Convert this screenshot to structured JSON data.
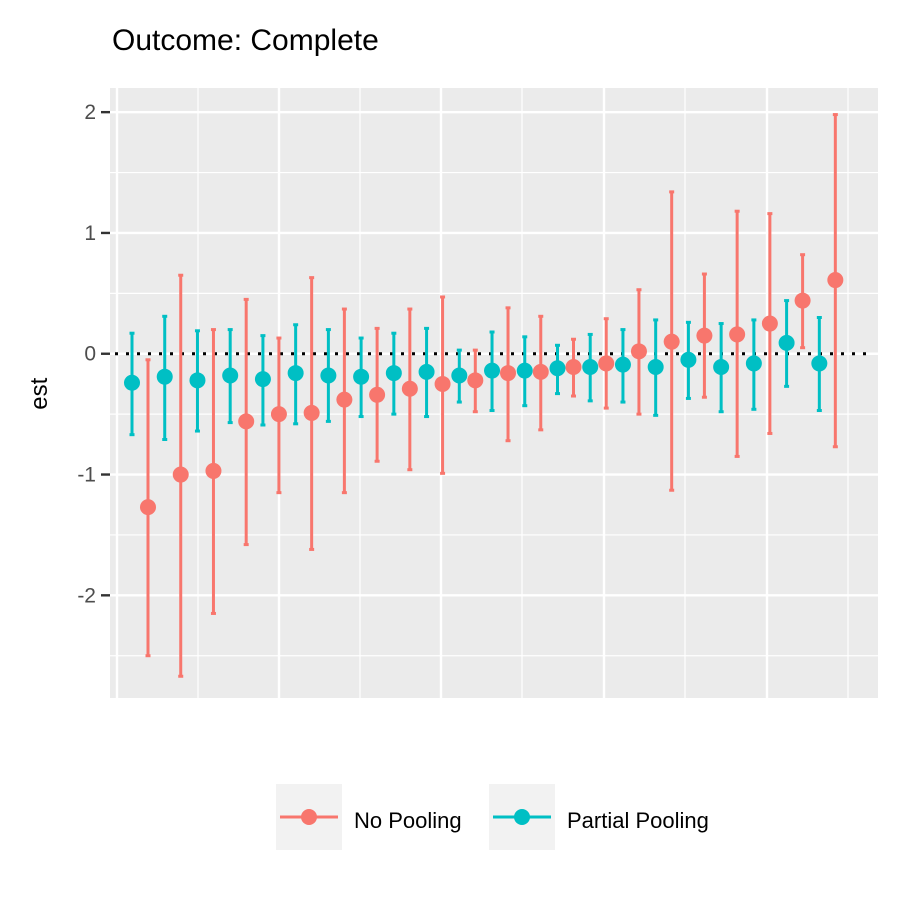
{
  "chart_data": {
    "type": "scatter",
    "title": "Outcome: Complete",
    "xlabel": "",
    "ylabel": "est",
    "ylim": [
      -2.85,
      2.2
    ],
    "yticks": [
      "-2",
      "-1",
      "0",
      "1",
      "2"
    ],
    "reference_line": {
      "y": 0,
      "style": "dotted"
    },
    "grid": true,
    "legend_position": "bottom",
    "series": [
      {
        "name": "No Pooling",
        "color": "#F8766D",
        "points": [
          {
            "est": -1.27,
            "lo": -2.5,
            "hi": -0.05
          },
          {
            "est": -1.0,
            "lo": -2.67,
            "hi": 0.65
          },
          {
            "est": -0.97,
            "lo": -2.15,
            "hi": 0.2
          },
          {
            "est": -0.56,
            "lo": -1.58,
            "hi": 0.45
          },
          {
            "est": -0.5,
            "lo": -1.15,
            "hi": 0.13
          },
          {
            "est": -0.49,
            "lo": -1.62,
            "hi": 0.63
          },
          {
            "est": -0.38,
            "lo": -1.15,
            "hi": 0.37
          },
          {
            "est": -0.34,
            "lo": -0.89,
            "hi": 0.21
          },
          {
            "est": -0.29,
            "lo": -0.96,
            "hi": 0.37
          },
          {
            "est": -0.25,
            "lo": -0.99,
            "hi": 0.47
          },
          {
            "est": -0.22,
            "lo": -0.48,
            "hi": 0.03
          },
          {
            "est": -0.16,
            "lo": -0.72,
            "hi": 0.38
          },
          {
            "est": -0.15,
            "lo": -0.63,
            "hi": 0.31
          },
          {
            "est": -0.11,
            "lo": -0.35,
            "hi": 0.12
          },
          {
            "est": -0.08,
            "lo": -0.45,
            "hi": 0.29
          },
          {
            "est": 0.02,
            "lo": -0.5,
            "hi": 0.53
          },
          {
            "est": 0.1,
            "lo": -1.13,
            "hi": 1.34
          },
          {
            "est": 0.15,
            "lo": -0.36,
            "hi": 0.66
          },
          {
            "est": 0.16,
            "lo": -0.85,
            "hi": 1.18
          },
          {
            "est": 0.25,
            "lo": -0.66,
            "hi": 1.16
          },
          {
            "est": 0.44,
            "lo": 0.05,
            "hi": 0.82
          },
          {
            "est": 0.61,
            "lo": -0.77,
            "hi": 1.98
          }
        ]
      },
      {
        "name": "Partial Pooling",
        "color": "#00BFC4",
        "points": [
          {
            "est": -0.24,
            "lo": -0.67,
            "hi": 0.17
          },
          {
            "est": -0.19,
            "lo": -0.71,
            "hi": 0.31
          },
          {
            "est": -0.22,
            "lo": -0.64,
            "hi": 0.19
          },
          {
            "est": -0.18,
            "lo": -0.57,
            "hi": 0.2
          },
          {
            "est": -0.21,
            "lo": -0.59,
            "hi": 0.15
          },
          {
            "est": -0.16,
            "lo": -0.58,
            "hi": 0.24
          },
          {
            "est": -0.18,
            "lo": -0.56,
            "hi": 0.2
          },
          {
            "est": -0.19,
            "lo": -0.52,
            "hi": 0.13
          },
          {
            "est": -0.16,
            "lo": -0.5,
            "hi": 0.17
          },
          {
            "est": -0.15,
            "lo": -0.52,
            "hi": 0.21
          },
          {
            "est": -0.18,
            "lo": -0.4,
            "hi": 0.03
          },
          {
            "est": -0.14,
            "lo": -0.47,
            "hi": 0.18
          },
          {
            "est": -0.14,
            "lo": -0.43,
            "hi": 0.14
          },
          {
            "est": -0.12,
            "lo": -0.33,
            "hi": 0.07
          },
          {
            "est": -0.11,
            "lo": -0.39,
            "hi": 0.16
          },
          {
            "est": -0.09,
            "lo": -0.4,
            "hi": 0.2
          },
          {
            "est": -0.11,
            "lo": -0.51,
            "hi": 0.28
          },
          {
            "est": -0.05,
            "lo": -0.37,
            "hi": 0.26
          },
          {
            "est": -0.11,
            "lo": -0.48,
            "hi": 0.25
          },
          {
            "est": -0.08,
            "lo": -0.46,
            "hi": 0.28
          },
          {
            "est": 0.09,
            "lo": -0.27,
            "hi": 0.44
          },
          {
            "est": -0.08,
            "lo": -0.47,
            "hi": 0.3
          }
        ]
      }
    ]
  }
}
